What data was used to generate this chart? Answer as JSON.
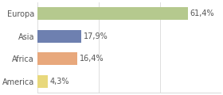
{
  "categories": [
    "Europa",
    "Asia",
    "Africa",
    "America"
  ],
  "values": [
    61.4,
    17.9,
    16.4,
    4.3
  ],
  "labels": [
    "61,4%",
    "17,9%",
    "16,4%",
    "4,3%"
  ],
  "bar_colors": [
    "#b5c98e",
    "#6e80b0",
    "#e8a87c",
    "#e8d87c"
  ],
  "background_color": "#ffffff",
  "grid_color": "#dddddd",
  "text_color": "#555555",
  "xlim": [
    0,
    75
  ],
  "label_fontsize": 7,
  "tick_fontsize": 7,
  "bar_height": 0.55
}
